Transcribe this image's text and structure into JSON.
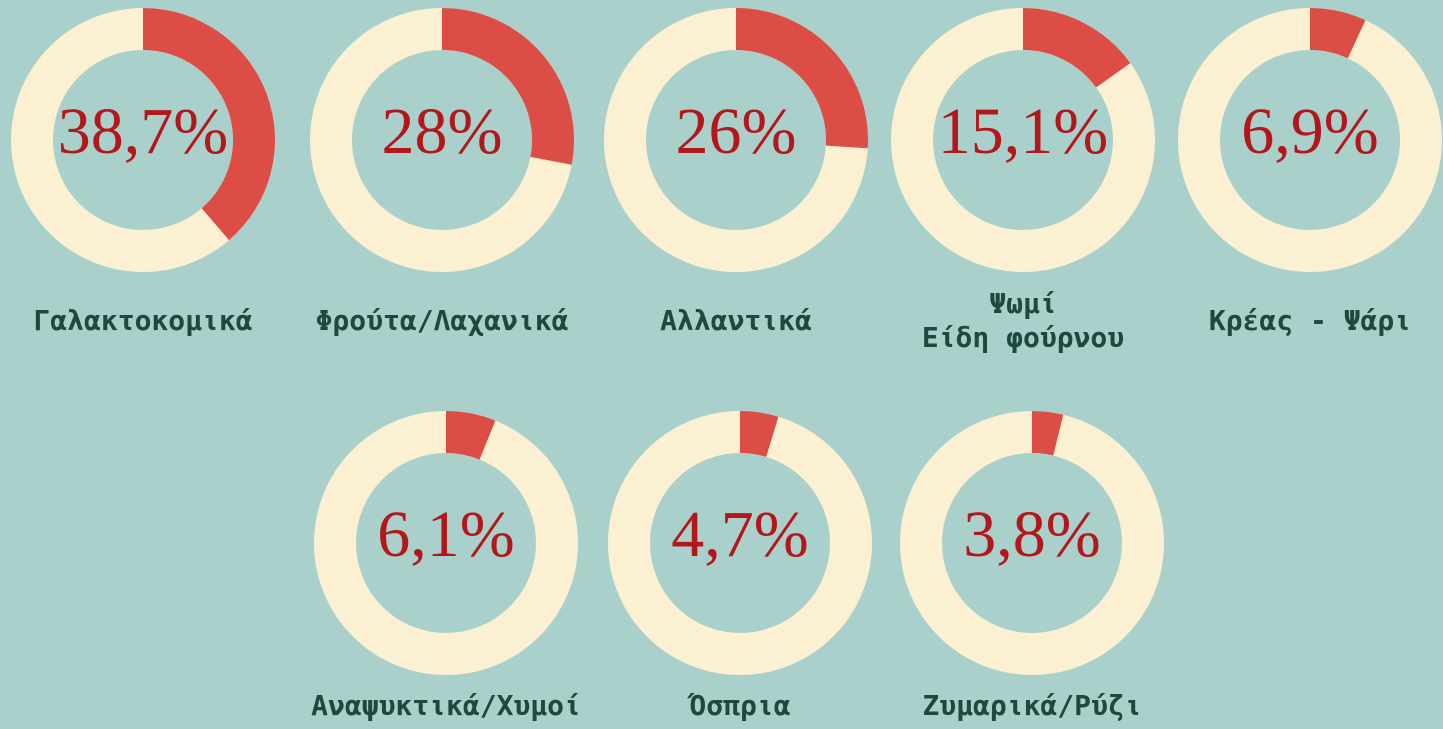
{
  "chart_data": [
    {
      "type": "donut",
      "categories": [
        "Γαλακτοκομικά"
      ],
      "values": [
        38.7
      ],
      "value_labels": [
        "38,7%"
      ],
      "color": "#dc4e45"
    },
    {
      "type": "donut",
      "categories": [
        "Φρούτα/Λαχανικά"
      ],
      "values": [
        28
      ],
      "value_labels": [
        "28%"
      ],
      "color": "#dc4e45"
    },
    {
      "type": "donut",
      "categories": [
        "Αλλαντικά"
      ],
      "values": [
        26
      ],
      "value_labels": [
        "26%"
      ],
      "color": "#dc4e45"
    },
    {
      "type": "donut",
      "categories": [
        "Ψωμί\nΕίδη φούρνου"
      ],
      "values": [
        15.1
      ],
      "value_labels": [
        "15,1%"
      ],
      "color": "#dc4e45"
    },
    {
      "type": "donut",
      "categories": [
        "Κρέας - Ψάρι"
      ],
      "values": [
        6.9
      ],
      "value_labels": [
        "6,9%"
      ],
      "color": "#dc4e45"
    },
    {
      "type": "donut",
      "categories": [
        "Αναψυκτικά/Χυμοί"
      ],
      "values": [
        6.1
      ],
      "value_labels": [
        "6,1%"
      ],
      "color": "#dc4e45"
    },
    {
      "type": "donut",
      "categories": [
        "Όσπρια"
      ],
      "values": [
        4.7
      ],
      "value_labels": [
        "4,7%"
      ],
      "color": "#dc4e45"
    },
    {
      "type": "donut",
      "categories": [
        "Ζυμαρικά/Ρύζι"
      ],
      "values": [
        3.8
      ],
      "value_labels": [
        "3,8%"
      ],
      "color": "#dc4e45"
    }
  ]
}
